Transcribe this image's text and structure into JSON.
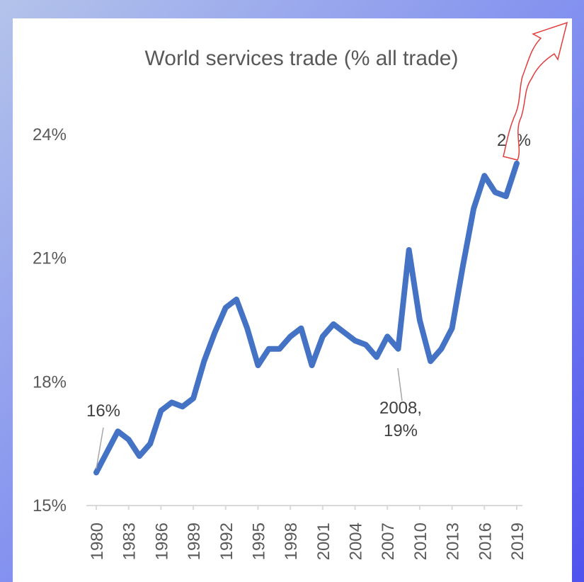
{
  "chart_data": {
    "type": "line",
    "title": "World services trade (% all trade)",
    "xlabel": "",
    "ylabel": "",
    "ylim": [
      15,
      24
    ],
    "yticks": [
      "15%",
      "18%",
      "21%",
      "24%"
    ],
    "xticks": [
      "1980",
      "1983",
      "1986",
      "1989",
      "1992",
      "1995",
      "1998",
      "2001",
      "2004",
      "2007",
      "2010",
      "2013",
      "2016",
      "2019"
    ],
    "x": [
      1980,
      1981,
      1982,
      1983,
      1984,
      1985,
      1986,
      1987,
      1988,
      1989,
      1990,
      1991,
      1992,
      1993,
      1994,
      1995,
      1996,
      1997,
      1998,
      1999,
      2000,
      2001,
      2002,
      2003,
      2004,
      2005,
      2006,
      2007,
      2008,
      2009,
      2010,
      2011,
      2012,
      2013,
      2014,
      2015,
      2016,
      2017,
      2018,
      2019
    ],
    "series": [
      {
        "values": [
          15.8,
          16.3,
          16.8,
          16.6,
          16.2,
          16.5,
          17.3,
          17.5,
          17.4,
          17.6,
          18.5,
          19.2,
          19.8,
          20.0,
          19.3,
          18.4,
          18.8,
          18.8,
          19.1,
          19.3,
          18.4,
          19.1,
          19.4,
          19.2,
          19.0,
          18.9,
          18.6,
          19.1,
          18.8,
          21.2,
          19.5,
          18.5,
          18.8,
          19.3,
          20.8,
          22.2,
          23.0,
          22.6,
          22.5,
          23.3
        ],
        "color": "#4472c4"
      }
    ],
    "annotations": [
      {
        "x": 1980,
        "label_lines": [
          "16%"
        ]
      },
      {
        "x": 2008,
        "label_lines": [
          "2008,",
          "19%"
        ]
      },
      {
        "x": 2019,
        "label_lines": [
          "23%"
        ]
      }
    ],
    "grid": false
  }
}
